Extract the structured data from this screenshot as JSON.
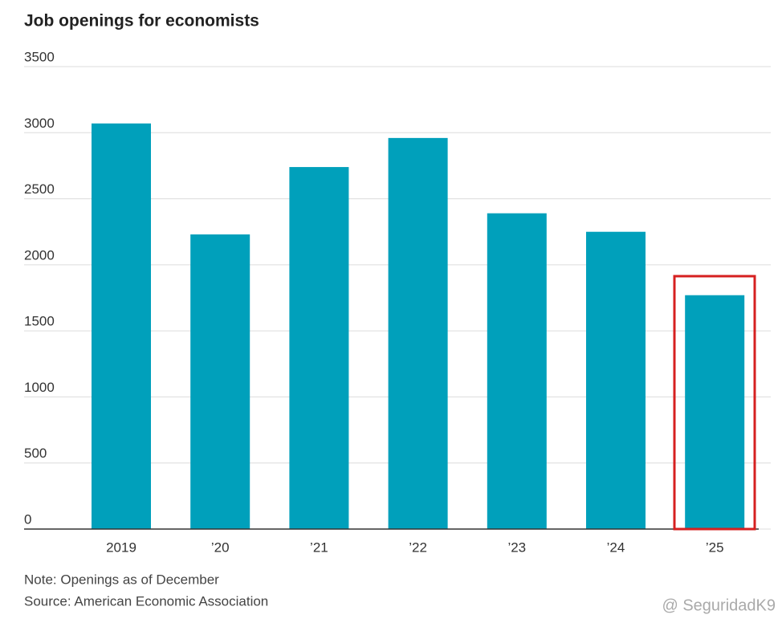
{
  "chart_data": {
    "type": "bar",
    "title": "Job openings for economists",
    "categories": [
      "2019",
      "’20",
      "’21",
      "’22",
      "’23",
      "’24",
      "’25"
    ],
    "values": [
      3070,
      2230,
      2740,
      2960,
      2390,
      2250,
      1770
    ],
    "color": "#00a0bb",
    "ylim": [
      0,
      3500
    ],
    "yticks": [
      0,
      500,
      1000,
      1500,
      2000,
      2500,
      3000,
      3500
    ],
    "grid": true,
    "note": "Note: Openings as of December",
    "source": "Source: American Economic Association",
    "watermark": "@ SeguridadK9"
  }
}
